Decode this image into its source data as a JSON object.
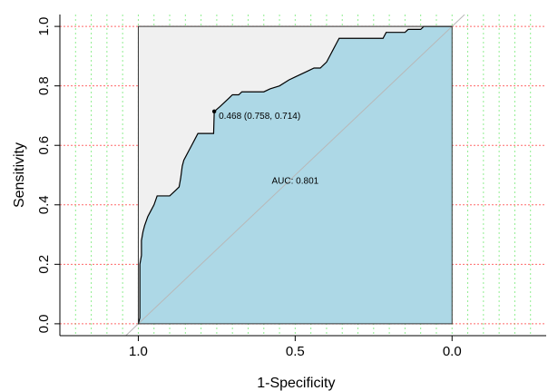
{
  "chart_data": {
    "type": "line",
    "xlabel": "1-Specificity",
    "ylabel": "Sensitivity",
    "xlim": [
      1.25,
      -0.3
    ],
    "ylim": [
      -0.04,
      1.04
    ],
    "x_axis_reversed": true,
    "x_ticks": [
      {
        "value": 1.0,
        "label": "1.0"
      },
      {
        "value": 0.5,
        "label": "0.5"
      },
      {
        "value": 0.0,
        "label": "0.0"
      }
    ],
    "y_ticks": [
      {
        "value": 0.0,
        "label": "0.0"
      },
      {
        "value": 0.2,
        "label": "0.2"
      },
      {
        "value": 0.4,
        "label": "0.4"
      },
      {
        "value": 0.6,
        "label": "0.6"
      },
      {
        "value": 0.8,
        "label": "0.8"
      },
      {
        "value": 1.0,
        "label": "1.0"
      }
    ],
    "grid": "dotted red horizontal lines, dotted green vertical lines",
    "auc_label": "AUC: 0.801",
    "auc_label_position": {
      "x": 0.5,
      "y": 0.48
    },
    "best_threshold": {
      "x": 0.758,
      "y": 0.714,
      "label": "0.468 (0.758, 0.714)"
    },
    "series": [
      {
        "points": [
          [
            1.0,
            0.0
          ],
          [
            0.995,
            0.02
          ],
          [
            0.995,
            0.2
          ],
          [
            0.99,
            0.23
          ],
          [
            0.99,
            0.28
          ],
          [
            0.985,
            0.31
          ],
          [
            0.98,
            0.33
          ],
          [
            0.97,
            0.36
          ],
          [
            0.96,
            0.38
          ],
          [
            0.95,
            0.4
          ],
          [
            0.94,
            0.43
          ],
          [
            0.9,
            0.43
          ],
          [
            0.89,
            0.44
          ],
          [
            0.88,
            0.45
          ],
          [
            0.87,
            0.46
          ],
          [
            0.865,
            0.49
          ],
          [
            0.86,
            0.53
          ],
          [
            0.855,
            0.55
          ],
          [
            0.85,
            0.56
          ],
          [
            0.84,
            0.58
          ],
          [
            0.83,
            0.6
          ],
          [
            0.82,
            0.62
          ],
          [
            0.81,
            0.64
          ],
          [
            0.76,
            0.64
          ],
          [
            0.758,
            0.714
          ],
          [
            0.74,
            0.73
          ],
          [
            0.73,
            0.74
          ],
          [
            0.72,
            0.75
          ],
          [
            0.71,
            0.76
          ],
          [
            0.7,
            0.77
          ],
          [
            0.68,
            0.77
          ],
          [
            0.67,
            0.78
          ],
          [
            0.6,
            0.78
          ],
          [
            0.58,
            0.79
          ],
          [
            0.55,
            0.8
          ],
          [
            0.52,
            0.82
          ],
          [
            0.5,
            0.83
          ],
          [
            0.48,
            0.84
          ],
          [
            0.46,
            0.85
          ],
          [
            0.44,
            0.86
          ],
          [
            0.42,
            0.86
          ],
          [
            0.41,
            0.87
          ],
          [
            0.4,
            0.88
          ],
          [
            0.39,
            0.9
          ],
          [
            0.38,
            0.92
          ],
          [
            0.37,
            0.94
          ],
          [
            0.36,
            0.96
          ],
          [
            0.22,
            0.96
          ],
          [
            0.21,
            0.98
          ],
          [
            0.15,
            0.98
          ],
          [
            0.14,
            0.99
          ],
          [
            0.1,
            0.99
          ],
          [
            0.09,
            1.0
          ],
          [
            0.0,
            1.0
          ]
        ]
      }
    ],
    "colors": {
      "auc_fill": "#add8e6",
      "upper_fill": "#f0f0f0",
      "roc_line": "#000000",
      "diagonal": "#b8b8b8",
      "grid_h": "#ff6a6a",
      "grid_v": "#90ee90"
    }
  }
}
